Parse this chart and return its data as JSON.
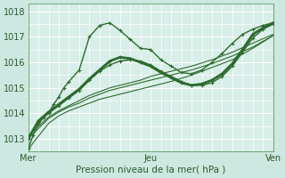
{
  "xlabel": "Pression niveau de la mer( hPa )",
  "bg_color": "#cce8e0",
  "grid_color": "#ffffff",
  "line_color": "#2d6b2d",
  "plot_bg": "#d8eee8",
  "xlim": [
    0,
    48
  ],
  "ylim": [
    1012.5,
    1018.3
  ],
  "yticks": [
    1013,
    1014,
    1015,
    1016,
    1017,
    1018
  ],
  "xticks": [
    0,
    24,
    48
  ],
  "xtick_labels": [
    "Mer",
    "Jeu",
    "Ven"
  ],
  "lines": [
    {
      "x": [
        0,
        0.5,
        1,
        2,
        3,
        4,
        5,
        6,
        8,
        10,
        12,
        14,
        16,
        18,
        20,
        22,
        24,
        28,
        32,
        36,
        40,
        44,
        48
      ],
      "y": [
        1012.55,
        1012.7,
        1012.85,
        1013.1,
        1013.35,
        1013.6,
        1013.75,
        1013.9,
        1014.1,
        1014.25,
        1014.4,
        1014.55,
        1014.65,
        1014.75,
        1014.85,
        1014.95,
        1015.05,
        1015.25,
        1015.5,
        1015.8,
        1016.1,
        1016.55,
        1017.05
      ],
      "lw": 0.8,
      "marker": null
    },
    {
      "x": [
        0,
        2,
        4,
        6,
        8,
        10,
        12,
        14,
        16,
        18,
        20,
        22,
        24,
        28,
        32,
        36,
        40,
        44,
        48
      ],
      "y": [
        1013.0,
        1013.4,
        1013.8,
        1014.05,
        1014.25,
        1014.4,
        1014.6,
        1014.75,
        1014.9,
        1015.0,
        1015.1,
        1015.2,
        1015.3,
        1015.5,
        1015.7,
        1015.95,
        1016.25,
        1016.6,
        1017.05
      ],
      "lw": 0.8,
      "marker": null
    },
    {
      "x": [
        0,
        2,
        4,
        6,
        8,
        10,
        12,
        14,
        16,
        18,
        20,
        22,
        24,
        28,
        32,
        36,
        40,
        44,
        48
      ],
      "y": [
        1013.1,
        1013.5,
        1013.85,
        1014.1,
        1014.3,
        1014.5,
        1014.7,
        1014.85,
        1015.0,
        1015.1,
        1015.2,
        1015.3,
        1015.45,
        1015.65,
        1015.85,
        1016.1,
        1016.4,
        1016.75,
        1017.1
      ],
      "lw": 0.8,
      "marker": null
    },
    {
      "x": [
        0,
        1,
        2,
        3,
        4,
        5,
        6,
        7,
        8,
        10,
        12,
        14,
        16,
        18,
        20,
        22,
        24,
        26,
        28,
        30,
        32,
        34,
        36,
        38,
        40,
        42,
        44,
        46,
        48
      ],
      "y": [
        1012.6,
        1013.15,
        1013.55,
        1013.85,
        1014.0,
        1014.35,
        1014.65,
        1015.0,
        1015.25,
        1015.7,
        1017.0,
        1017.45,
        1017.55,
        1017.25,
        1016.9,
        1016.55,
        1016.5,
        1016.1,
        1015.85,
        1015.6,
        1015.55,
        1015.7,
        1016.0,
        1016.35,
        1016.75,
        1017.1,
        1017.3,
        1017.45,
        1017.55
      ],
      "lw": 1.0,
      "marker": "+"
    },
    {
      "x": [
        0,
        2,
        4,
        6,
        8,
        10,
        12,
        14,
        16,
        18,
        20,
        22,
        24,
        26,
        28,
        30,
        32,
        34,
        36,
        38,
        40,
        42,
        44,
        46,
        48
      ],
      "y": [
        1013.0,
        1013.7,
        1014.05,
        1014.35,
        1014.65,
        1014.95,
        1015.35,
        1015.7,
        1016.05,
        1016.2,
        1016.15,
        1016.0,
        1015.85,
        1015.6,
        1015.4,
        1015.2,
        1015.1,
        1015.15,
        1015.3,
        1015.55,
        1015.95,
        1016.5,
        1017.1,
        1017.35,
        1017.55
      ],
      "lw": 2.0,
      "marker": "+"
    },
    {
      "x": [
        0,
        2,
        4,
        6,
        8,
        10,
        12,
        14,
        16,
        18,
        20,
        22,
        24,
        26,
        28,
        30,
        32,
        34,
        36,
        38,
        40,
        42,
        44,
        46,
        48
      ],
      "y": [
        1013.05,
        1013.65,
        1014.0,
        1014.3,
        1014.6,
        1014.9,
        1015.3,
        1015.65,
        1015.9,
        1016.05,
        1016.1,
        1016.05,
        1015.9,
        1015.65,
        1015.45,
        1015.25,
        1015.1,
        1015.1,
        1015.2,
        1015.45,
        1015.85,
        1016.4,
        1016.95,
        1017.3,
        1017.5
      ],
      "lw": 1.0,
      "marker": "+"
    }
  ]
}
